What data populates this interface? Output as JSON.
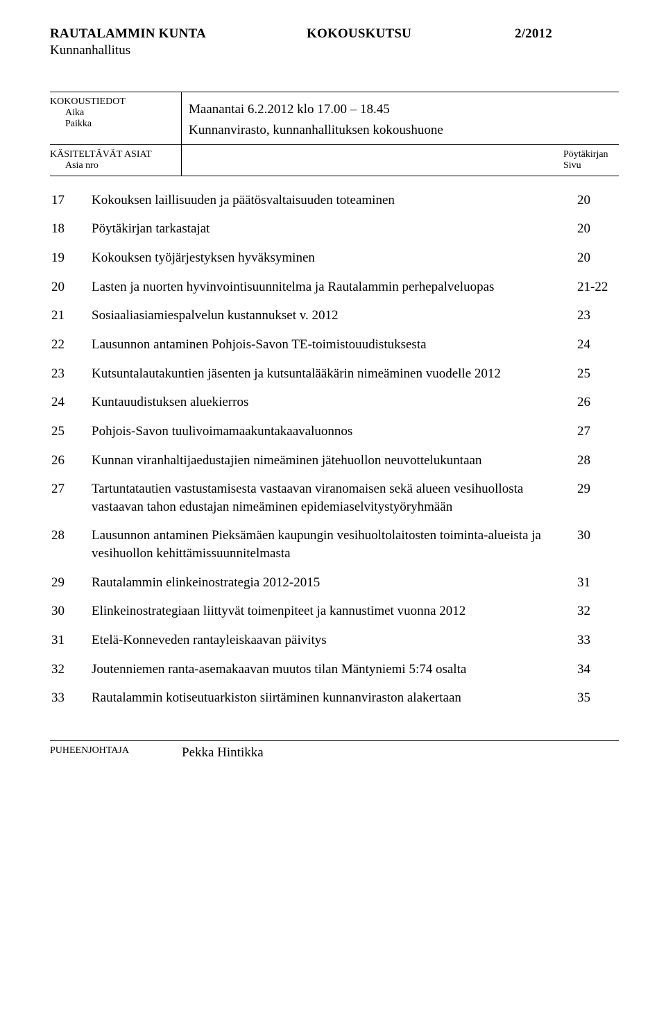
{
  "header": {
    "org": "RAUTALAMMIN KUNTA",
    "doc_type": "KOKOUSKUTSU",
    "doc_number": "2/2012",
    "board": "Kunnanhallitus"
  },
  "meta": {
    "labels": {
      "kokoustiedot": "KOKOUSTIEDOT",
      "aika": "Aika",
      "paikka": "Paikka",
      "asiat": "KÄSITELTÄVÄT ASIAT",
      "asia_nro": "Asia nro",
      "poytakirjan": "Pöytäkirjan",
      "sivu": "Sivu",
      "puheenjohtaja": "PUHEENJOHTAJA"
    },
    "aika_value": "Maanantai 6.2.2012 klo 17.00 – 18.45",
    "paikka_value": "Kunnanvirasto, kunnanhallituksen kokoushuone",
    "chair_name": "Pekka Hintikka"
  },
  "items": [
    {
      "n": "17",
      "text": "Kokouksen laillisuuden ja päätösvaltaisuuden toteaminen",
      "page": "20"
    },
    {
      "n": "18",
      "text": "Pöytäkirjan tarkastajat",
      "page": "20"
    },
    {
      "n": "19",
      "text": "Kokouksen työjärjestyksen hyväksyminen",
      "page": "20"
    },
    {
      "n": "20",
      "text": "Lasten ja nuorten hyvinvointisuunnitelma ja Rautalammin perhepalveluopas",
      "page": "21-22"
    },
    {
      "n": "21",
      "text": "Sosiaaliasiamiespalvelun kustannukset v. 2012",
      "page": "23"
    },
    {
      "n": "22",
      "text": "Lausunnon antaminen Pohjois-Savon TE-toimistouudistuksesta",
      "page": "24"
    },
    {
      "n": "23",
      "text": "Kutsuntalautakuntien jäsenten ja kutsuntalääkärin nimeäminen vuodelle 2012",
      "page": "25"
    },
    {
      "n": "24",
      "text": "Kuntauudistuksen aluekierros",
      "page": "26"
    },
    {
      "n": "25",
      "text": "Pohjois-Savon tuulivoimamaakuntakaavaluonnos",
      "page": "27"
    },
    {
      "n": "26",
      "text": "Kunnan viranhaltijaedustajien nimeäminen jätehuollon neuvottelukuntaan",
      "page": "28"
    },
    {
      "n": "27",
      "text": "Tartuntatautien vastustamisesta vastaavan viranomaisen sekä alueen vesihuollosta vastaavan tahon edustajan nimeäminen epidemiaselvitystyöryhmään",
      "page": "29"
    },
    {
      "n": "28",
      "text": "Lausunnon antaminen Pieksämäen kaupungin vesihuoltolaitosten toiminta-alueista ja vesihuollon kehittämissuunnitelmasta",
      "page": "30"
    },
    {
      "n": "29",
      "text": "Rautalammin elinkeinostrategia 2012-2015",
      "page": "31"
    },
    {
      "n": "30",
      "text": "Elinkeinostrategiaan liittyvät toimenpiteet ja kannustimet vuonna 2012",
      "page": "32"
    },
    {
      "n": "31",
      "text": "Etelä-Konneveden rantayleiskaavan päivitys",
      "page": "33"
    },
    {
      "n": "32",
      "text": "Joutenniemen ranta-asemakaavan muutos tilan Mäntyniemi 5:74 osalta",
      "page": "34"
    },
    {
      "n": "33",
      "text": "Rautalammin kotiseutuarkiston siirtäminen kunnanviraston alakertaan",
      "page": "35"
    }
  ]
}
